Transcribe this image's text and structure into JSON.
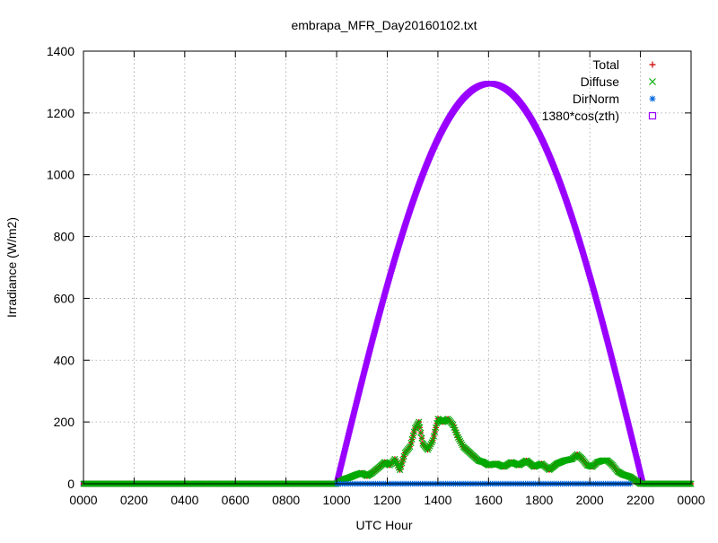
{
  "chart_data": {
    "type": "scatter",
    "title": "embrapa_MFR_Day20160102.txt",
    "xlabel": "UTC Hour",
    "ylabel": "Irradiance (W/m2)",
    "xlim": [
      0,
      24
    ],
    "ylim": [
      0,
      1400
    ],
    "x_ticks": [
      0,
      2,
      4,
      6,
      8,
      10,
      12,
      14,
      16,
      18,
      20,
      22,
      24
    ],
    "x_tick_labels": [
      "0000",
      "0200",
      "0400",
      "0600",
      "0800",
      "1000",
      "1200",
      "1400",
      "1600",
      "1800",
      "2000",
      "2200",
      "0000"
    ],
    "y_ticks": [
      0,
      200,
      400,
      600,
      800,
      1000,
      1200,
      1400
    ],
    "y_tick_labels": [
      "0",
      "200",
      "400",
      "600",
      "800",
      "1000",
      "1200",
      "1400"
    ],
    "grid": true,
    "legend_position": "top-right",
    "series": [
      {
        "name": "Total",
        "marker": "plus",
        "color": "#cc0000",
        "points": [
          [
            0,
            0
          ],
          [
            10,
            0
          ],
          [
            10.1,
            5
          ],
          [
            10.3,
            15
          ],
          [
            10.5,
            20
          ],
          [
            10.8,
            30
          ],
          [
            11,
            35
          ],
          [
            11.2,
            25
          ],
          [
            11.4,
            35
          ],
          [
            11.7,
            55
          ],
          [
            11.9,
            70
          ],
          [
            12.1,
            60
          ],
          [
            12.3,
            80
          ],
          [
            12.5,
            45
          ],
          [
            12.7,
            100
          ],
          [
            12.9,
            120
          ],
          [
            13.1,
            180
          ],
          [
            13.25,
            200
          ],
          [
            13.4,
            130
          ],
          [
            13.6,
            110
          ],
          [
            13.8,
            140
          ],
          [
            14,
            210
          ],
          [
            14.2,
            200
          ],
          [
            14.4,
            210
          ],
          [
            14.6,
            190
          ],
          [
            14.8,
            150
          ],
          [
            15,
            120
          ],
          [
            15.2,
            105
          ],
          [
            15.4,
            90
          ],
          [
            15.6,
            75
          ],
          [
            15.8,
            70
          ],
          [
            16,
            60
          ],
          [
            16.3,
            65
          ],
          [
            16.6,
            55
          ],
          [
            16.9,
            70
          ],
          [
            17.2,
            60
          ],
          [
            17.5,
            75
          ],
          [
            17.8,
            55
          ],
          [
            18.1,
            65
          ],
          [
            18.4,
            45
          ],
          [
            18.7,
            65
          ],
          [
            19,
            75
          ],
          [
            19.3,
            80
          ],
          [
            19.5,
            95
          ],
          [
            19.7,
            80
          ],
          [
            19.9,
            60
          ],
          [
            20.1,
            55
          ],
          [
            20.3,
            70
          ],
          [
            20.5,
            75
          ],
          [
            20.7,
            75
          ],
          [
            20.9,
            60
          ],
          [
            21.1,
            40
          ],
          [
            21.3,
            30
          ],
          [
            21.5,
            25
          ],
          [
            21.6,
            22
          ],
          [
            22,
            0
          ],
          [
            24,
            0
          ]
        ]
      },
      {
        "name": "Diffuse",
        "marker": "cross",
        "color": "#00aa00",
        "points": [
          [
            0,
            0
          ],
          [
            10,
            0
          ],
          [
            10.1,
            5
          ],
          [
            10.3,
            15
          ],
          [
            10.5,
            20
          ],
          [
            10.8,
            30
          ],
          [
            11,
            35
          ],
          [
            11.2,
            25
          ],
          [
            11.4,
            35
          ],
          [
            11.7,
            55
          ],
          [
            11.9,
            70
          ],
          [
            12.1,
            60
          ],
          [
            12.3,
            80
          ],
          [
            12.5,
            45
          ],
          [
            12.7,
            100
          ],
          [
            12.9,
            120
          ],
          [
            13.1,
            180
          ],
          [
            13.25,
            200
          ],
          [
            13.4,
            130
          ],
          [
            13.6,
            110
          ],
          [
            13.8,
            140
          ],
          [
            14,
            210
          ],
          [
            14.2,
            200
          ],
          [
            14.4,
            210
          ],
          [
            14.6,
            190
          ],
          [
            14.8,
            150
          ],
          [
            15,
            120
          ],
          [
            15.2,
            105
          ],
          [
            15.4,
            90
          ],
          [
            15.6,
            75
          ],
          [
            15.8,
            70
          ],
          [
            16,
            60
          ],
          [
            16.3,
            65
          ],
          [
            16.6,
            55
          ],
          [
            16.9,
            70
          ],
          [
            17.2,
            60
          ],
          [
            17.5,
            75
          ],
          [
            17.8,
            55
          ],
          [
            18.1,
            65
          ],
          [
            18.4,
            45
          ],
          [
            18.7,
            65
          ],
          [
            19,
            75
          ],
          [
            19.3,
            80
          ],
          [
            19.5,
            95
          ],
          [
            19.7,
            80
          ],
          [
            19.9,
            60
          ],
          [
            20.1,
            55
          ],
          [
            20.3,
            70
          ],
          [
            20.5,
            75
          ],
          [
            20.7,
            75
          ],
          [
            20.9,
            60
          ],
          [
            21.1,
            40
          ],
          [
            21.3,
            30
          ],
          [
            21.5,
            25
          ],
          [
            21.6,
            22
          ],
          [
            22,
            0
          ],
          [
            24,
            0
          ]
        ]
      },
      {
        "name": "DirNorm",
        "marker": "star",
        "color": "#0066dd",
        "points": [
          [
            10,
            0
          ],
          [
            11,
            0
          ],
          [
            12,
            0
          ],
          [
            13,
            0
          ],
          [
            14,
            0
          ],
          [
            15,
            0
          ],
          [
            16,
            0
          ],
          [
            17,
            0
          ],
          [
            18,
            0
          ],
          [
            19,
            0
          ],
          [
            20,
            0
          ],
          [
            21,
            0
          ],
          [
            21.6,
            0
          ]
        ]
      },
      {
        "name": "1380*cos(zth)",
        "marker": "open-square",
        "color": "#9900ff",
        "curve": {
          "start_hour": 10,
          "end_hour": 22.1,
          "peak_hour": 16.05,
          "peak_value": 1295
        },
        "flat_points": [
          [
            0,
            0
          ],
          [
            10,
            0
          ],
          [
            22.1,
            0
          ],
          [
            24,
            0
          ]
        ]
      }
    ]
  }
}
